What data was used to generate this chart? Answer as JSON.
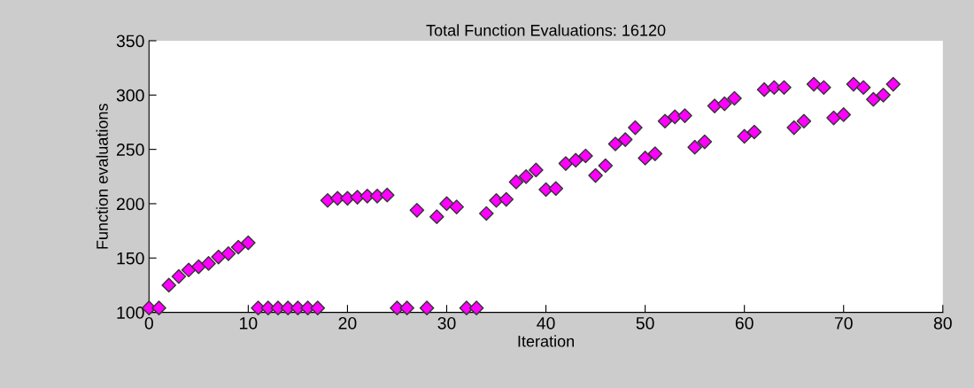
{
  "chart_data": {
    "type": "scatter",
    "title": "Total Function Evaluations: 16120",
    "xlabel": "Iteration",
    "ylabel": "Function evaluations",
    "x": [
      0,
      1,
      2,
      3,
      4,
      5,
      6,
      7,
      8,
      9,
      10,
      11,
      12,
      13,
      14,
      15,
      16,
      17,
      18,
      19,
      20,
      21,
      22,
      23,
      24,
      25,
      26,
      27,
      28,
      29,
      30,
      31,
      32,
      33,
      34,
      35,
      36,
      37,
      38,
      39,
      40,
      41,
      42,
      43,
      44,
      45,
      46,
      47,
      48,
      49,
      50,
      51,
      52,
      53,
      54,
      55,
      56,
      57,
      58,
      59,
      60,
      61,
      62,
      63,
      64,
      65,
      66,
      67,
      68,
      69,
      70,
      71,
      72,
      73,
      74,
      75
    ],
    "series": [
      {
        "color": "#ff00ff",
        "values": [
          104,
          104,
          125,
          133,
          139,
          142,
          145,
          151,
          154,
          160,
          164,
          104,
          104,
          104,
          104,
          104,
          104,
          104,
          203,
          205,
          205,
          206,
          207,
          207,
          208,
          104,
          104,
          194,
          104,
          188,
          200,
          197,
          104,
          104,
          191,
          203,
          204,
          220,
          225,
          231,
          213,
          214,
          237,
          240,
          244,
          226,
          235,
          255,
          259,
          270,
          242,
          246,
          276,
          280,
          281,
          252,
          257,
          290,
          292,
          297,
          262,
          266,
          305,
          307,
          307,
          270,
          276,
          310,
          307,
          279,
          282,
          310,
          307,
          296,
          300,
          310
        ]
      }
    ],
    "marker": "diamond",
    "xlim": [
      0,
      80
    ],
    "ylim": [
      100,
      350
    ],
    "xticks": [
      0,
      10,
      20,
      30,
      40,
      50,
      60,
      70,
      80
    ],
    "yticks": [
      100,
      150,
      200,
      250,
      300,
      350
    ],
    "grid": false,
    "legend": false
  }
}
